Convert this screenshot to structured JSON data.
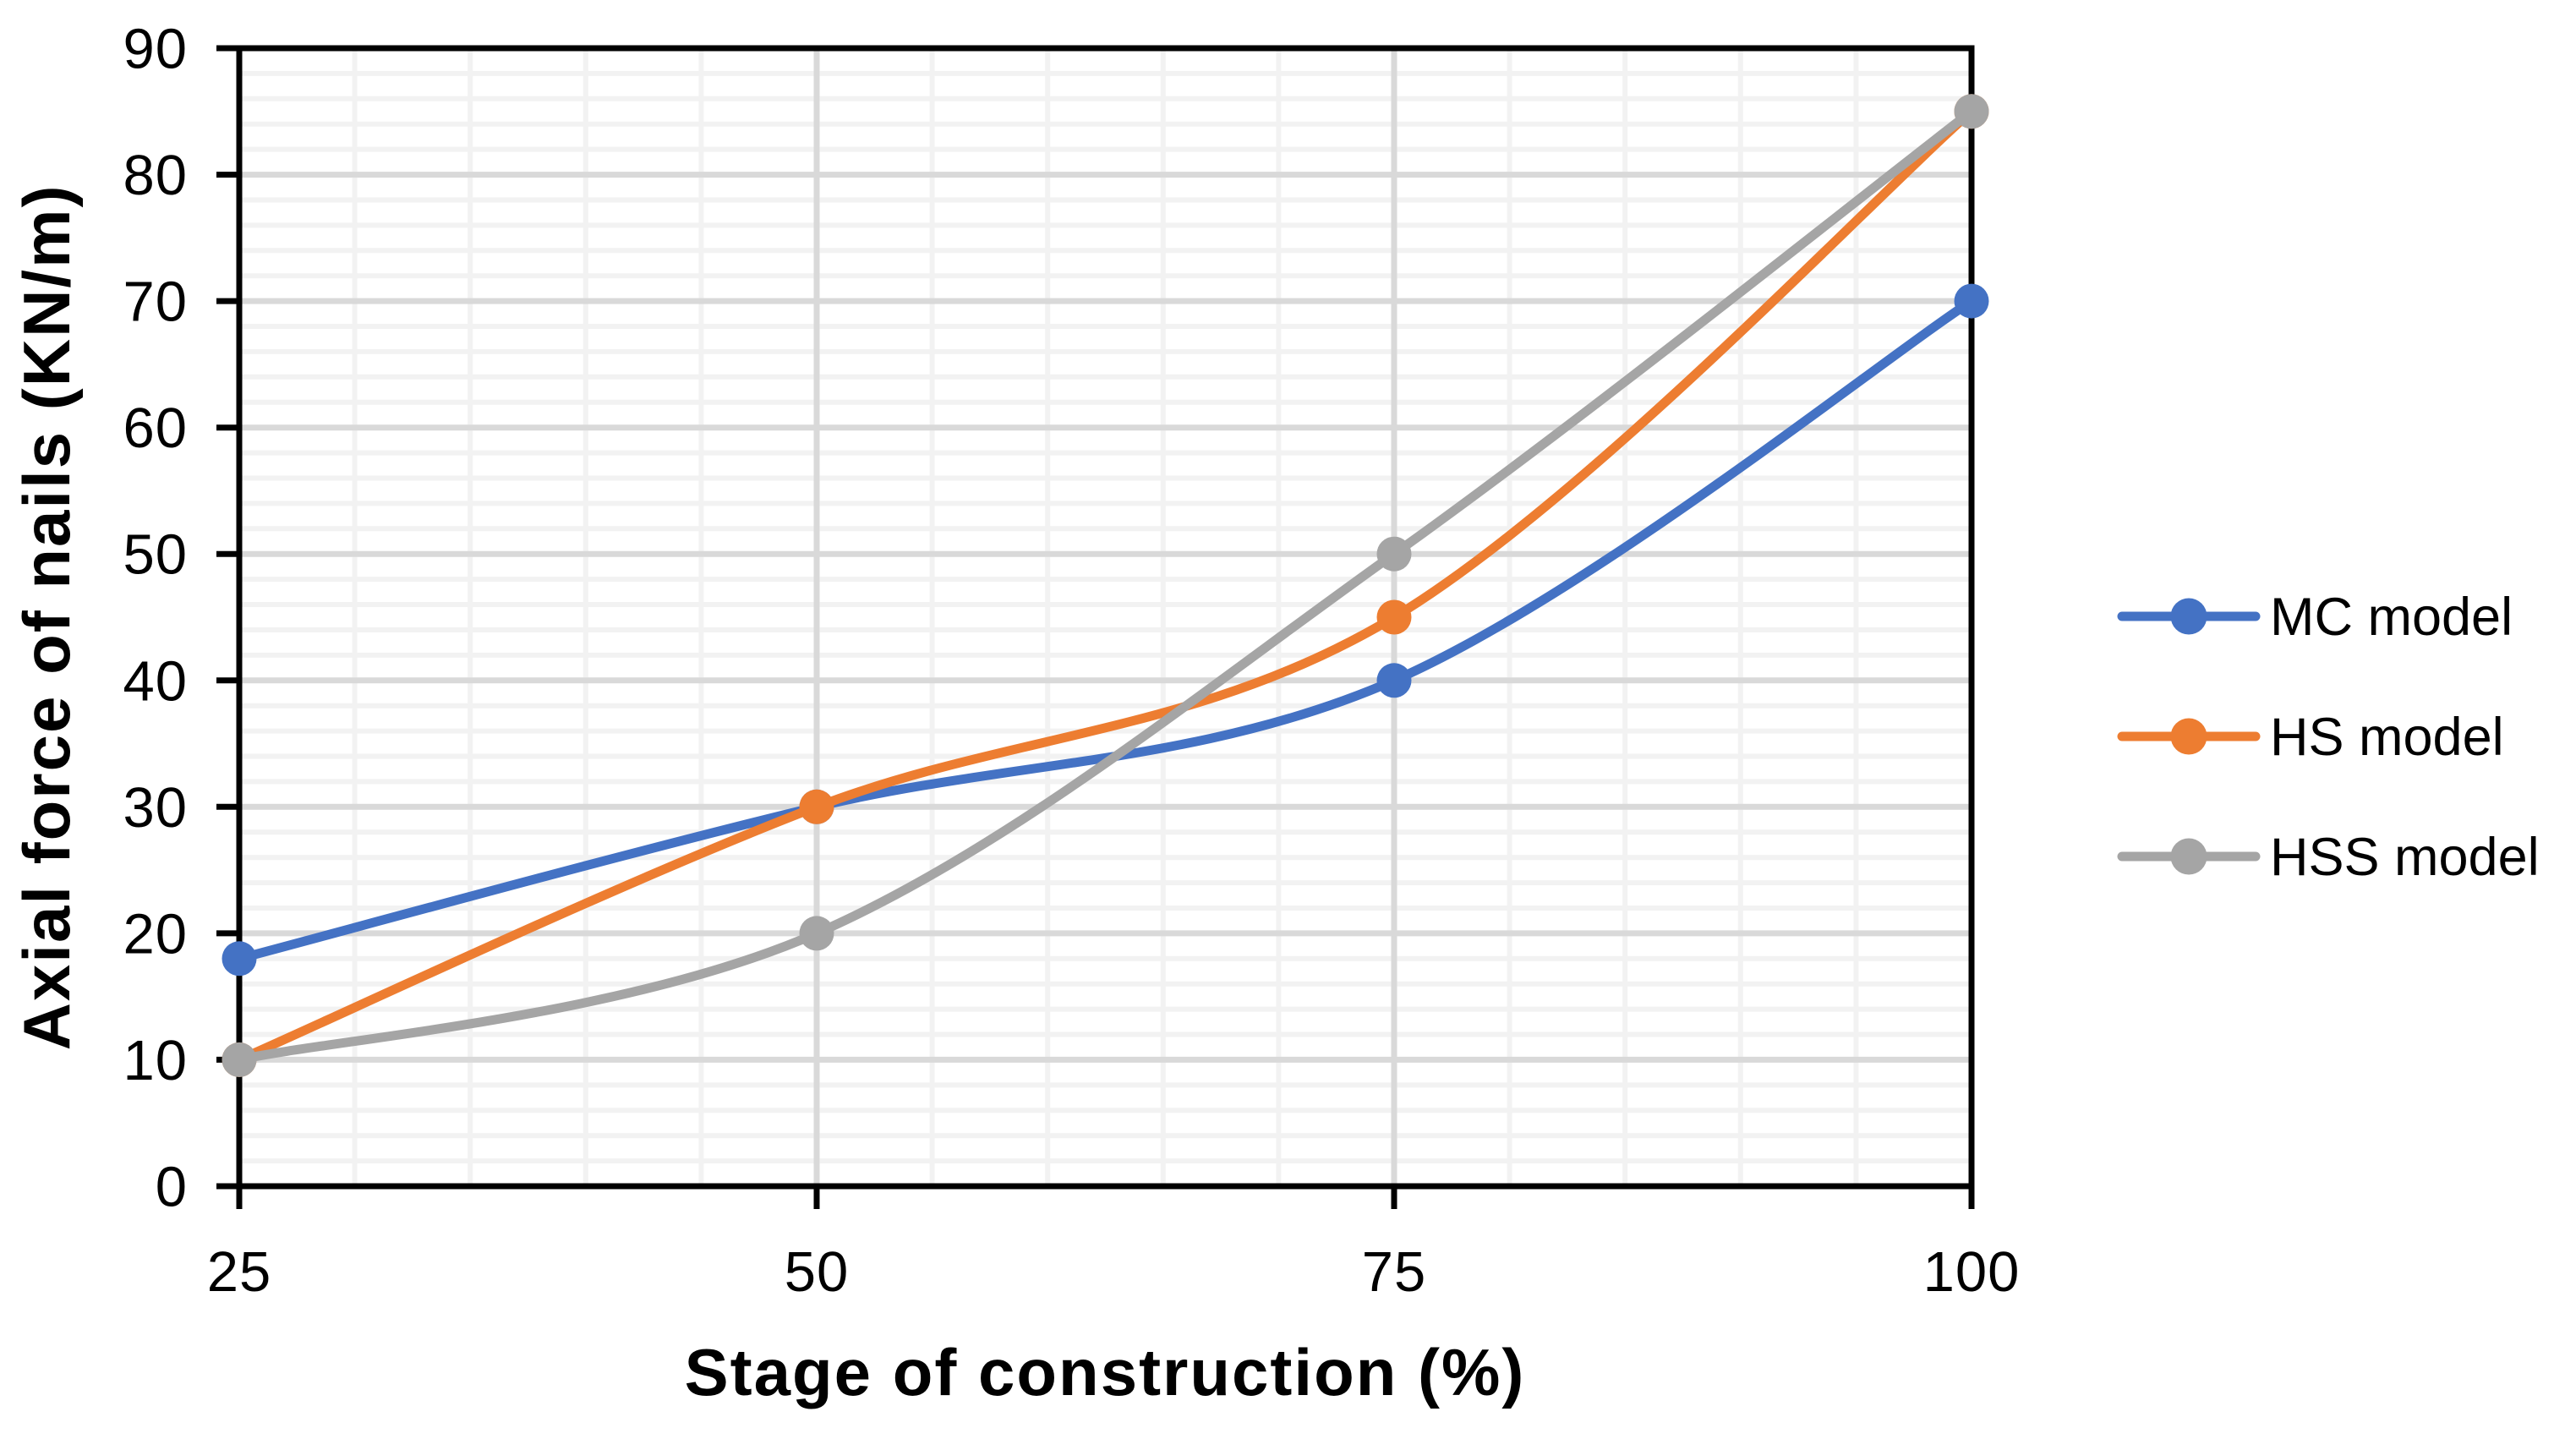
{
  "chart_data": {
    "type": "line",
    "title": "",
    "xlabel": "Stage of construction (%)",
    "ylabel": "Axial force of nails (KN/m)",
    "categories": [
      25,
      50,
      75,
      100
    ],
    "x_tick_labels": [
      "25",
      "50",
      "75",
      "100"
    ],
    "series": [
      {
        "name": "MC model",
        "color": "#4472C4",
        "values": [
          18,
          30,
          40,
          70
        ]
      },
      {
        "name": "HS model",
        "color": "#ED7D31",
        "values": [
          10,
          30,
          45,
          85
        ]
      },
      {
        "name": "HSS model",
        "color": "#A5A5A5",
        "values": [
          10,
          20,
          50,
          85
        ]
      }
    ],
    "ylim": [
      0,
      90
    ],
    "xlim": [
      25,
      100
    ],
    "y_ticks": [
      0,
      10,
      20,
      30,
      40,
      50,
      60,
      70,
      80,
      90
    ],
    "y_minor_unit": 2,
    "x_minor_unit": 5,
    "grid": {
      "minor_color": "#F2F2F2",
      "major_color": "#D9D9D9",
      "grid_on": true
    },
    "axis_color": "#000000",
    "legend_position": "right",
    "line_smoothing": true,
    "marker": "circle"
  }
}
